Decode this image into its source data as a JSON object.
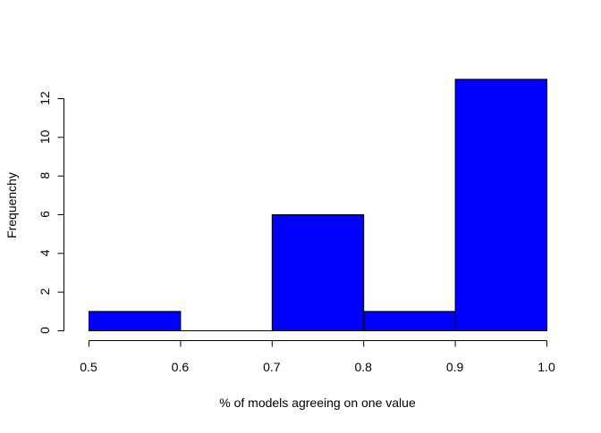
{
  "chart_data": {
    "type": "histogram",
    "title": "",
    "xlabel": "% of models agreeing on one value",
    "ylabel": "Frequenchy",
    "bins": [
      {
        "from": 0.5,
        "to": 0.6,
        "count": 1
      },
      {
        "from": 0.6,
        "to": 0.7,
        "count": 0
      },
      {
        "from": 0.7,
        "to": 0.8,
        "count": 6
      },
      {
        "from": 0.8,
        "to": 0.9,
        "count": 1
      },
      {
        "from": 0.9,
        "to": 1.0,
        "count": 13
      }
    ],
    "x_ticks": [
      "0.5",
      "0.6",
      "0.7",
      "0.8",
      "0.9",
      "1.0"
    ],
    "y_ticks": [
      "0",
      "2",
      "4",
      "6",
      "8",
      "10",
      "12"
    ],
    "xlim": [
      0.5,
      1.0
    ],
    "ylim": [
      0,
      12
    ],
    "bar_color": "#0000ff",
    "bar_edge_color": "#000000",
    "grid": false,
    "legend": "none"
  }
}
